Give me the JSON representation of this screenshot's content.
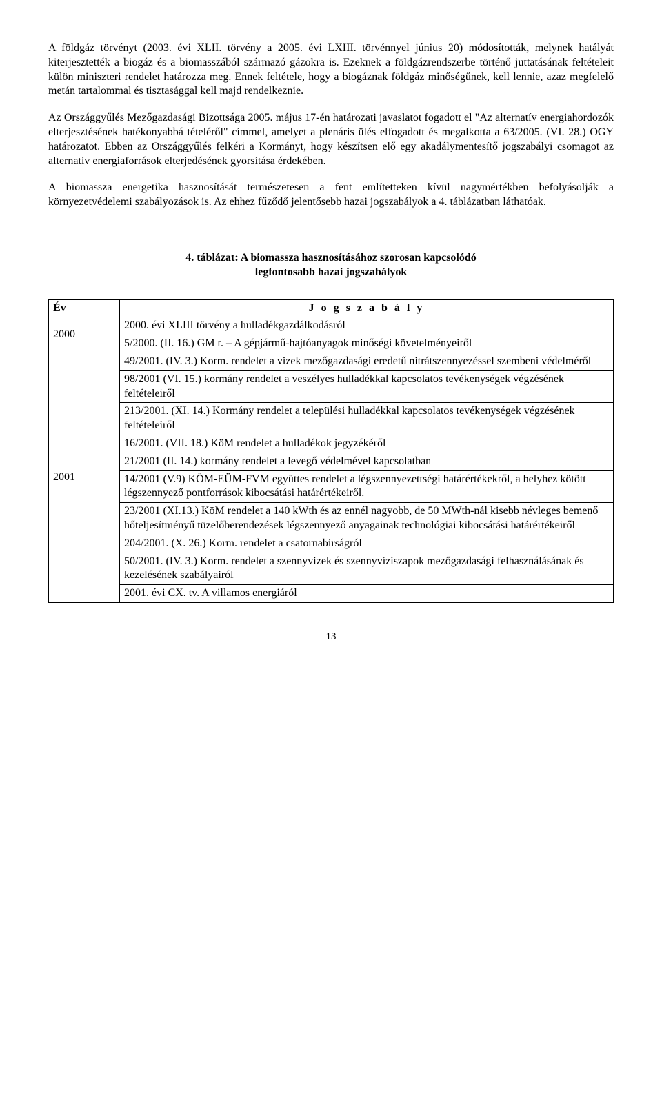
{
  "paragraphs": {
    "p1": "A földgáz törvényt (2003. évi XLII. törvény a 2005. évi LXIII. törvénnyel június 20) módosították, melynek hatályát kiterjesztették a biogáz és a biomasszából származó gázokra is. Ezeknek a földgázrendszerbe történő juttatásának feltételeit külön miniszteri rendelet határozza meg. Ennek feltétele, hogy a biogáznak földgáz minőségűnek, kell lennie, azaz megfelelő metán tartalommal és tisztasággal kell majd rendelkeznie.",
    "p2": "Az Országgyűlés Mezőgazdasági Bizottsága 2005. május 17-én határozati javaslatot fogadott el \"Az alternatív energiahordozók elterjesztésének hatékonyabbá tételéről\" címmel, amelyet a plenáris ülés elfogadott és megalkotta a 63/2005. (VI. 28.) OGY határozatot. Ebben az Országgyűlés felkéri a Kormányt, hogy készítsen elő egy akadálymentesítő jogszabályi csomagot az alternatív energiaforrások elterjedésének gyorsítása érdekében.",
    "p3": "A biomassza energetika hasznosítását természetesen a fent említetteken kívül nagymértékben befolyásolják a környezetvédelemi szabályozások is. Az ehhez fűződő jelentősebb hazai jogszabályok a 4. táblázatban láthatóak."
  },
  "table": {
    "title_line1": "4. táblázat: A biomassza hasznosításához szorosan kapcsolódó",
    "title_line2": "legfontosabb hazai jogszabályok",
    "head_year": "Év",
    "head_law": "J o g s z a b á l y",
    "year_2000": "2000",
    "year_2001": "2001",
    "rows_2000": {
      "r1": "2000. évi XLIII törvény a hulladékgazdálkodásról",
      "r2": "5/2000. (II. 16.) GM r. – A gépjármű-hajtóanyagok minőségi követelményeiről"
    },
    "rows_2001": {
      "r1": "49/2001. (IV. 3.) Korm. rendelet a vizek mezőgazdasági eredetű nitrátszennyezéssel szembeni védelméről",
      "r2": "98/2001 (VI. 15.) kormány rendelet a veszélyes hulladékkal kapcsolatos tevékenységek végzésének feltételeiről",
      "r3": "213/2001. (XI. 14.) Kormány rendelet a települési hulladékkal kapcsolatos tevékenységek végzésének feltételeiről",
      "r4": "16/2001. (VII. 18.) KöM rendelet a hulladékok jegyzékéről",
      "r5": "21/2001 (II. 14.) kormány rendelet a levegő védelmével kapcsolatban",
      "r6": "14/2001 (V.9) KÖM-EÜM-FVM együttes rendelet a légszennyezettségi határértékekről, a helyhez kötött légszennyező pontforrások kibocsátási határértékeiről.",
      "r7": "23/2001 (XI.13.) KöM rendelet a 140 kWth és az ennél nagyobb, de 50 MWth-nál kisebb névleges bemenő hőteljesítményű tüzelőberendezések légszennyező anyagainak technológiai kibocsátási határértékeiről",
      "r8": "204/2001. (X. 26.) Korm. rendelet a csatornabírságról",
      "r9": "50/2001. (IV. 3.) Korm. rendelet a szennyvizek és szennyvíziszapok mezőgazdasági felhasználásának és kezelésének szabályairól",
      "r10": "2001. évi CX. tv. A villamos energiáról"
    }
  },
  "page_number": "13"
}
